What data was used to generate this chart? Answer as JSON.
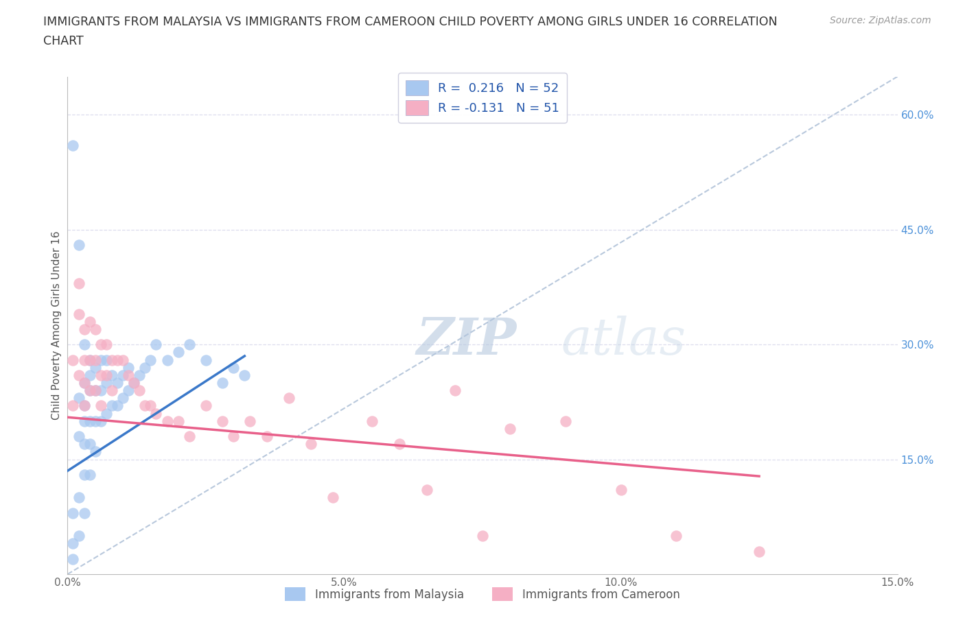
{
  "title_line1": "IMMIGRANTS FROM MALAYSIA VS IMMIGRANTS FROM CAMEROON CHILD POVERTY AMONG GIRLS UNDER 16 CORRELATION",
  "title_line2": "CHART",
  "source": "Source: ZipAtlas.com",
  "ylabel": "Child Poverty Among Girls Under 16",
  "malaysia_R": 0.216,
  "malaysia_N": 52,
  "cameroon_R": -0.131,
  "cameroon_N": 51,
  "malaysia_color": "#a8c8f0",
  "cameroon_color": "#f5afc4",
  "malaysia_line_color": "#3a78c9",
  "cameroon_line_color": "#e8608a",
  "ref_line_color": "#b8c8dc",
  "xlim": [
    0,
    0.15
  ],
  "ylim": [
    0,
    0.65
  ],
  "x_ticks": [
    0.0,
    0.05,
    0.1,
    0.15
  ],
  "x_tick_labels": [
    "0.0%",
    "5.0%",
    "10.0%",
    "15.0%"
  ],
  "y_ticks_right": [
    0.15,
    0.3,
    0.45,
    0.6
  ],
  "y_tick_labels_right": [
    "15.0%",
    "30.0%",
    "45.0%",
    "60.0%"
  ],
  "watermark_zip": "ZIP",
  "watermark_atlas": "atlas",
  "malaysia_x": [
    0.001,
    0.001,
    0.001,
    0.001,
    0.002,
    0.002,
    0.002,
    0.002,
    0.002,
    0.003,
    0.003,
    0.003,
    0.003,
    0.003,
    0.003,
    0.003,
    0.004,
    0.004,
    0.004,
    0.004,
    0.004,
    0.004,
    0.005,
    0.005,
    0.005,
    0.005,
    0.006,
    0.006,
    0.006,
    0.007,
    0.007,
    0.007,
    0.008,
    0.008,
    0.009,
    0.009,
    0.01,
    0.01,
    0.011,
    0.011,
    0.012,
    0.013,
    0.014,
    0.015,
    0.016,
    0.018,
    0.02,
    0.022,
    0.025,
    0.028,
    0.03,
    0.032
  ],
  "malaysia_y": [
    0.56,
    0.02,
    0.08,
    0.04,
    0.43,
    0.23,
    0.18,
    0.1,
    0.05,
    0.3,
    0.25,
    0.22,
    0.2,
    0.17,
    0.13,
    0.08,
    0.28,
    0.26,
    0.24,
    0.2,
    0.17,
    0.13,
    0.27,
    0.24,
    0.2,
    0.16,
    0.28,
    0.24,
    0.2,
    0.28,
    0.25,
    0.21,
    0.26,
    0.22,
    0.25,
    0.22,
    0.26,
    0.23,
    0.27,
    0.24,
    0.25,
    0.26,
    0.27,
    0.28,
    0.3,
    0.28,
    0.29,
    0.3,
    0.28,
    0.25,
    0.27,
    0.26
  ],
  "cameroon_x": [
    0.001,
    0.001,
    0.002,
    0.002,
    0.002,
    0.003,
    0.003,
    0.003,
    0.003,
    0.004,
    0.004,
    0.004,
    0.005,
    0.005,
    0.005,
    0.006,
    0.006,
    0.006,
    0.007,
    0.007,
    0.008,
    0.008,
    0.009,
    0.01,
    0.011,
    0.012,
    0.013,
    0.014,
    0.015,
    0.016,
    0.018,
    0.02,
    0.022,
    0.025,
    0.028,
    0.03,
    0.033,
    0.036,
    0.04,
    0.044,
    0.048,
    0.055,
    0.06,
    0.065,
    0.07,
    0.075,
    0.08,
    0.09,
    0.1,
    0.11,
    0.125
  ],
  "cameroon_y": [
    0.28,
    0.22,
    0.38,
    0.34,
    0.26,
    0.32,
    0.28,
    0.25,
    0.22,
    0.33,
    0.28,
    0.24,
    0.32,
    0.28,
    0.24,
    0.3,
    0.26,
    0.22,
    0.3,
    0.26,
    0.28,
    0.24,
    0.28,
    0.28,
    0.26,
    0.25,
    0.24,
    0.22,
    0.22,
    0.21,
    0.2,
    0.2,
    0.18,
    0.22,
    0.2,
    0.18,
    0.2,
    0.18,
    0.23,
    0.17,
    0.1,
    0.2,
    0.17,
    0.11,
    0.24,
    0.05,
    0.19,
    0.2,
    0.11,
    0.05,
    0.03
  ],
  "malaysia_trend": [
    0.0,
    0.032,
    0.135,
    0.285
  ],
  "cameroon_trend_x": [
    0.0,
    0.125
  ],
  "cameroon_trend_y": [
    0.205,
    0.128
  ]
}
